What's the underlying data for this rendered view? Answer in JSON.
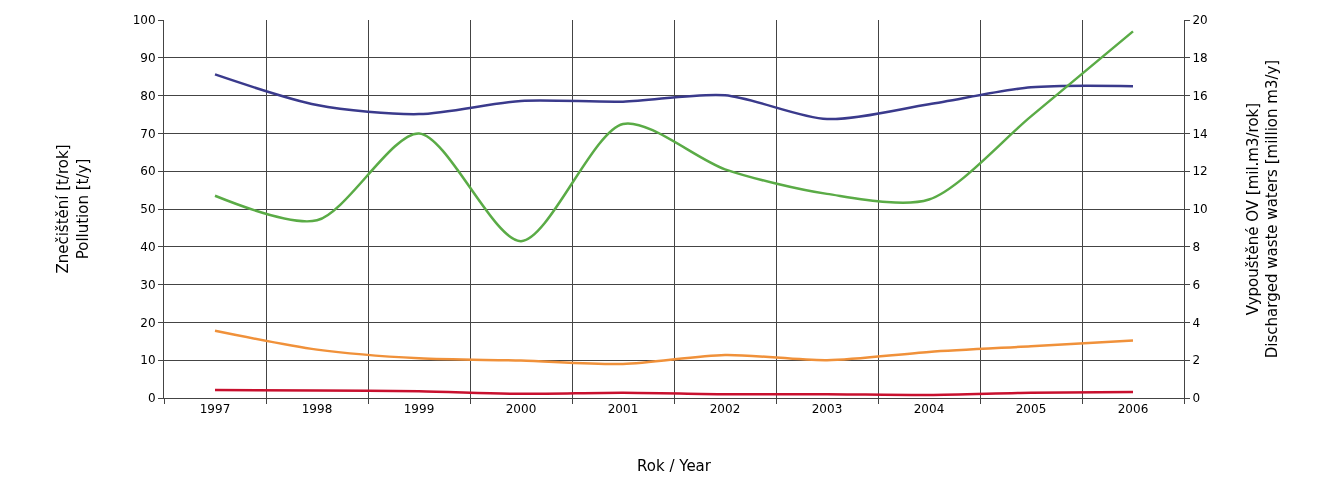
{
  "chart_data": {
    "type": "line",
    "xlabel": "Rok / Year",
    "ylabel": "Znečištění [t/rok]\nPollution [t/y]",
    "y2label": "Vypouštěné OV [mil.m3/rok]\nDischarged waste waters [million m3/y]",
    "categories": [
      "1997",
      "1998",
      "1999",
      "2000",
      "2001",
      "2002",
      "2003",
      "2004",
      "2005",
      "2006"
    ],
    "series": [
      {
        "color": "#3a3a8c",
        "values": [
          85.6,
          77.5,
          75.1,
          78.6,
          78.4,
          80.1,
          73.8,
          77.7,
          82.2,
          82.5
        ]
      },
      {
        "color": "#5aab46",
        "axis": "y2",
        "values": [
          10.7,
          9.4,
          14.0,
          8.3,
          14.5,
          12.1,
          10.8,
          10.5,
          14.9,
          19.4
        ]
      },
      {
        "color": "#f0913a",
        "values": [
          17.8,
          12.8,
          10.5,
          9.9,
          9.0,
          11.4,
          10.0,
          12.2,
          13.7,
          15.2
        ]
      },
      {
        "color": "#c8102e",
        "values": [
          2.1,
          2.0,
          1.8,
          1.1,
          1.4,
          1.0,
          1.0,
          0.8,
          1.4,
          1.6
        ]
      }
    ],
    "ylim": [
      0,
      100
    ],
    "yticks": [
      0,
      10,
      20,
      30,
      40,
      50,
      60,
      70,
      80,
      90,
      100
    ],
    "y2lim": [
      0,
      20
    ],
    "y2ticks": [
      0,
      2,
      4,
      6,
      8,
      10,
      12,
      14,
      16,
      18,
      20
    ],
    "grid": true,
    "marker": "none",
    "line_style": "solid"
  }
}
